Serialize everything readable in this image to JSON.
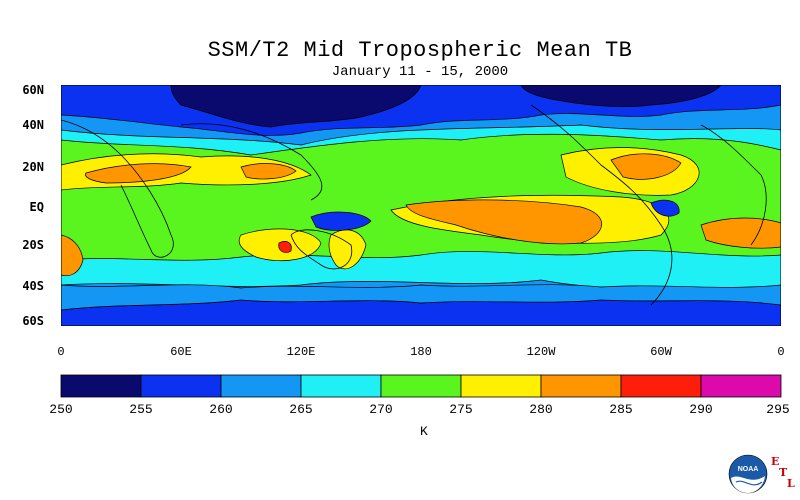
{
  "title": "SSM/T2 Mid Tropospheric Mean TB",
  "subtitle": "January 11 - 15, 2000",
  "lat_labels": [
    "60N",
    "40N",
    "20N",
    "EQ",
    "20S",
    "40S",
    "60S"
  ],
  "lon_labels": [
    "0",
    "60E",
    "120E",
    "180",
    "120W",
    "60W",
    "0"
  ],
  "colorbar": {
    "ticks": [
      "250",
      "255",
      "260",
      "265",
      "270",
      "275",
      "280",
      "285",
      "290",
      "295"
    ],
    "colors": [
      "#0a0a6e",
      "#0a32f0",
      "#1496f5",
      "#1ef0f5",
      "#5af51e",
      "#fff000",
      "#ff9600",
      "#ff1e0a",
      "#dc0aaa"
    ],
    "unit": "K"
  },
  "logo": {
    "text": "NOAA",
    "letters": [
      "E",
      "T",
      "L"
    ]
  },
  "chart_data": {
    "type": "heatmap",
    "variable": "Mid tropospheric mean brightness temperature (K)",
    "x_range": [
      0,
      360
    ],
    "y_range": [
      -60,
      60
    ],
    "levels": [
      250,
      255,
      260,
      265,
      270,
      275,
      280,
      285,
      290,
      295
    ],
    "regions": [
      {
        "area": "Northern high latitudes 40N-60N",
        "value_range": [
          250,
          260
        ]
      },
      {
        "area": "Northwest Pacific / East Asia 40N-60N",
        "value_range": [
          250,
          255
        ]
      },
      {
        "area": "Tropical belt 20N-EQ",
        "value_range": [
          270,
          280
        ]
      },
      {
        "area": "North Africa / Arabia ~20N",
        "value_range": [
          280,
          285
        ]
      },
      {
        "area": "Central Pacific near EQ (180-120W)",
        "value_range": [
          280,
          285
        ]
      },
      {
        "area": "Southern Africa 20S",
        "value_range": [
          285,
          290
        ]
      },
      {
        "area": "Southern mid latitudes 40S-60S",
        "value_range": [
          255,
          265
        ]
      }
    ]
  }
}
